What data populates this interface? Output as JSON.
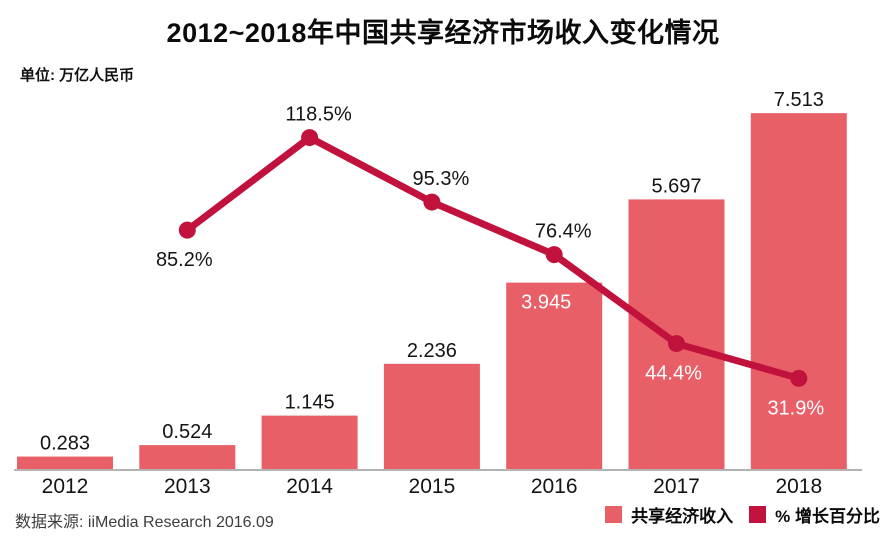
{
  "chart_data": {
    "type": "bar+line",
    "title": "2012~2018年中国共享经济市场收入变化情况",
    "unit_label": "单位: 万亿人民币",
    "source": "数据来源: iiMedia Research 2016.09",
    "categories": [
      "2012",
      "2013",
      "2014",
      "2015",
      "2016",
      "2017",
      "2018"
    ],
    "series": [
      {
        "name": "共享经济收入",
        "type": "bar",
        "color": "#E95F68",
        "values": [
          0.283,
          0.524,
          1.145,
          2.236,
          3.945,
          5.697,
          7.513
        ],
        "labels": [
          "0.283",
          "0.524",
          "1.145",
          "2.236",
          "3.945",
          "5.697",
          "7.513"
        ],
        "label_styles": [
          "above-dark",
          "above-dark",
          "above-dark",
          "above-dark",
          "inside-light",
          "above-dark",
          "above-dark"
        ]
      },
      {
        "name": "% 增长百分比",
        "type": "line",
        "color": "#C0123C",
        "values": [
          null,
          85.2,
          118.5,
          95.3,
          76.4,
          44.4,
          31.9
        ],
        "labels": [
          null,
          "85.2%",
          "118.5%",
          "95.3%",
          "76.4%",
          "44.4%",
          "31.9%"
        ],
        "label_styles": [
          null,
          "below-dark",
          "above-dark",
          "above-dark",
          "above-dark",
          "below-light",
          "below-light"
        ]
      }
    ],
    "layout": {
      "bar_axis_range": [
        0,
        8.8
      ],
      "line_axis_range": [
        0,
        168
      ],
      "grid": false,
      "y_axis_visible": false,
      "legend_position": "bottom-right",
      "axis_color": "#b3b3b3"
    }
  }
}
